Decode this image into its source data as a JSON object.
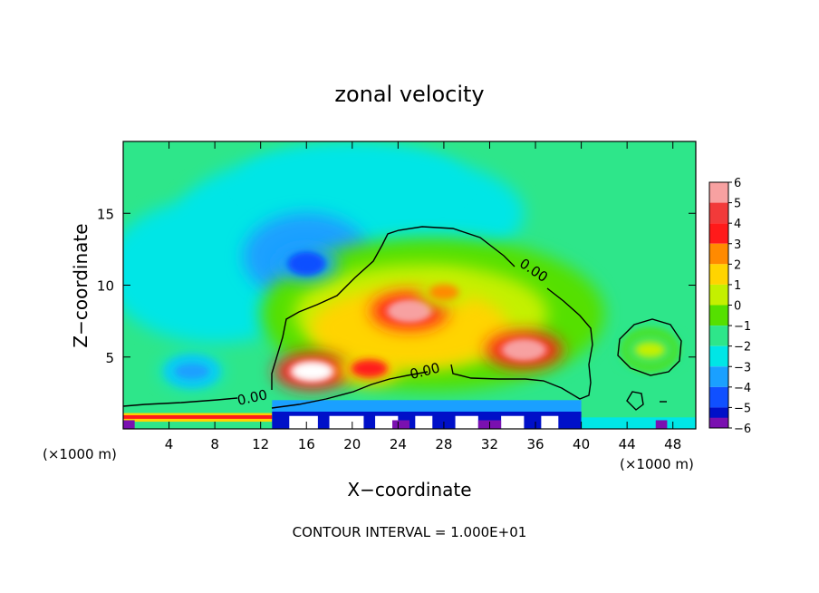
{
  "chart_data": {
    "type": "heatmap",
    "title": "zonal velocity",
    "xlabel": "X−coordinate",
    "ylabel": "Z−coordinate",
    "x_unit": "(×1000 m)",
    "x_unit_right": "(×1000 m)",
    "footer": "CONTOUR INTERVAL = 1.000E+01",
    "xlim": [
      0,
      50
    ],
    "ylim": [
      0,
      20
    ],
    "x_ticks": [
      4,
      8,
      12,
      16,
      20,
      24,
      28,
      32,
      36,
      40,
      44,
      48
    ],
    "y_ticks": [
      5,
      10,
      15
    ],
    "colorbar_ticks": [
      6,
      5,
      4,
      3,
      2,
      1,
      0,
      -1,
      -2,
      -3,
      -4,
      -5,
      -6
    ],
    "colorbar_labels": [
      "6",
      "5",
      "4",
      "3",
      "2",
      "1",
      "0",
      "−1",
      "−2",
      "−3",
      "−4",
      "−5",
      "−6"
    ],
    "colorbar_range": [
      -6,
      6
    ],
    "contour_labels": [
      "0.00",
      "0.00",
      "0.00"
    ],
    "contour_value": 0.0,
    "features": [
      {
        "x": 25,
        "z": 8.2,
        "value": 5.5
      },
      {
        "x": 35,
        "z": 5.5,
        "value": 5.5
      },
      {
        "x": 16.5,
        "z": 4.0,
        "value": 6.0
      },
      {
        "x": 21.5,
        "z": 4.2,
        "value": 4.0
      },
      {
        "x": 28,
        "z": 9.5,
        "value": 3.0
      },
      {
        "x": 16,
        "z": 11.5,
        "value": -4.0
      },
      {
        "x": 6,
        "z": 4.0,
        "value": -3.5
      },
      {
        "x": 46,
        "z": 5.5,
        "value": 0.5
      }
    ]
  }
}
